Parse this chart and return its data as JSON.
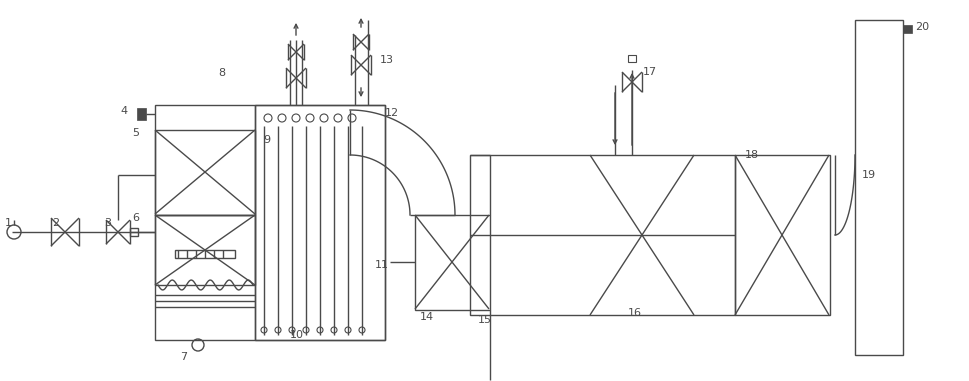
{
  "lc": "#4a4a4a",
  "lw": 1.0,
  "bg": "#ffffff",
  "fig_w": 9.69,
  "fig_h": 3.81,
  "dpi": 100
}
